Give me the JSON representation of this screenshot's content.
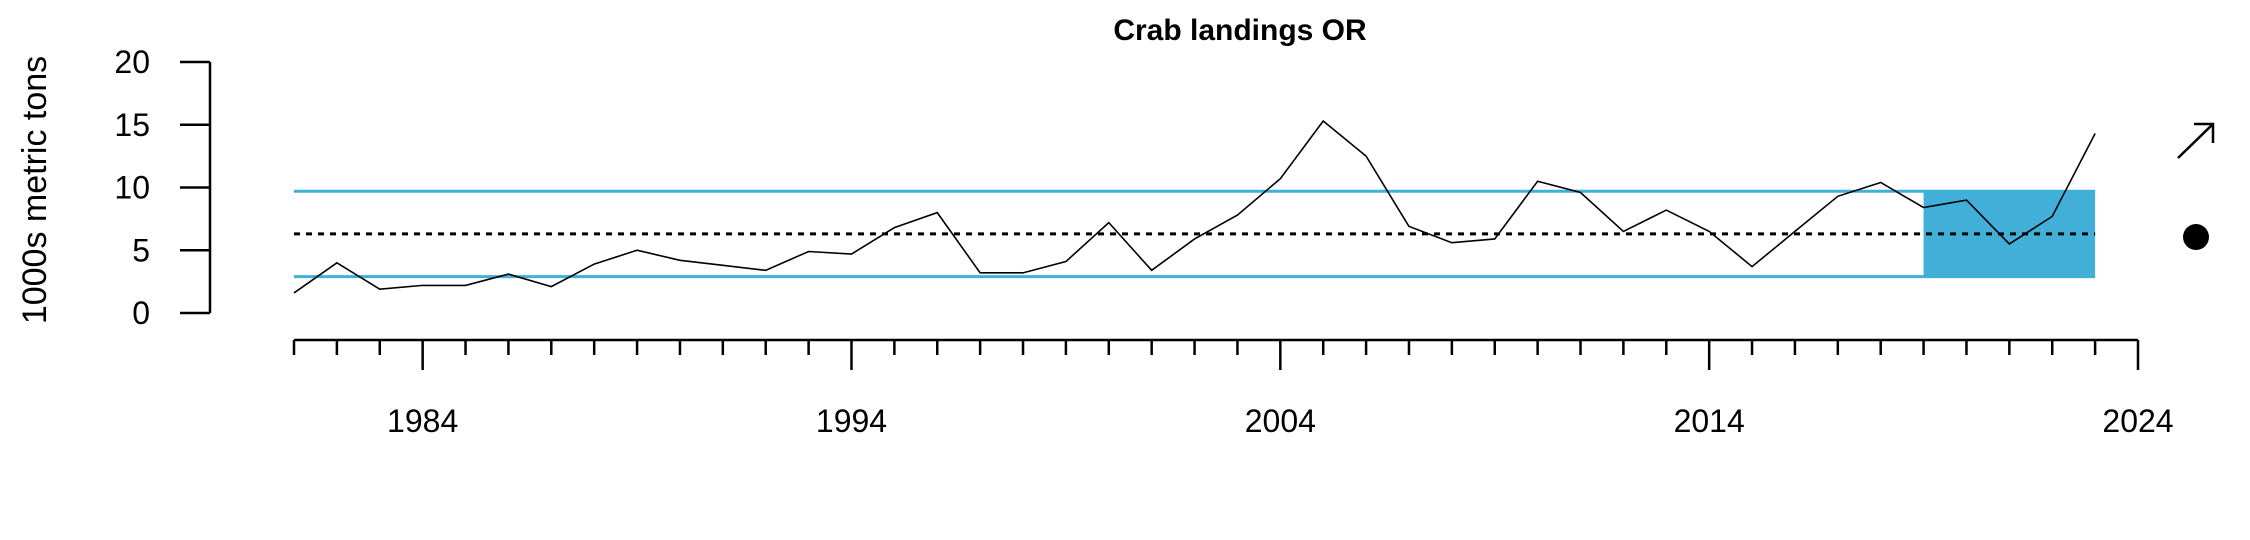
{
  "chart_data": {
    "type": "line",
    "title": "Crab landings OR",
    "ylabel": "1000s metric tons",
    "xlabel": "",
    "ylim": [
      0,
      20
    ],
    "yticks": [
      0,
      5,
      10,
      15,
      20
    ],
    "xlim": [
      1981,
      2024
    ],
    "xtick_labels": [
      1984,
      1994,
      2004,
      2014,
      2024
    ],
    "x": [
      1981,
      1982,
      1983,
      1984,
      1985,
      1986,
      1987,
      1988,
      1989,
      1990,
      1991,
      1992,
      1993,
      1994,
      1995,
      1996,
      1997,
      1998,
      1999,
      2000,
      2001,
      2002,
      2003,
      2004,
      2005,
      2006,
      2007,
      2008,
      2009,
      2010,
      2011,
      2012,
      2013,
      2014,
      2015,
      2016,
      2017,
      2018,
      2019,
      2020,
      2021,
      2022,
      2023
    ],
    "series": [
      {
        "values": [
          1.6,
          4.0,
          1.9,
          2.2,
          2.2,
          3.1,
          2.1,
          3.9,
          5.0,
          4.2,
          3.8,
          3.4,
          4.9,
          4.7,
          6.8,
          8.0,
          3.2,
          3.2,
          4.1,
          7.2,
          3.4,
          5.9,
          7.8,
          10.7,
          15.3,
          12.5,
          6.9,
          5.6,
          5.9,
          10.5,
          9.6,
          6.5,
          8.2,
          6.5,
          3.7,
          6.5,
          9.3,
          10.4,
          8.4,
          9.0,
          5.5,
          7.7,
          14.3
        ]
      }
    ],
    "mean": 6.3,
    "upper_sd": 9.7,
    "lower_sd": 2.9,
    "recent_window": [
      2019,
      2023
    ],
    "trend_indicator": "increasing-arrow",
    "mean_indicator": "dot",
    "colors": {
      "line": "#000000",
      "band": "#41afd7",
      "ref": "#000000"
    }
  }
}
